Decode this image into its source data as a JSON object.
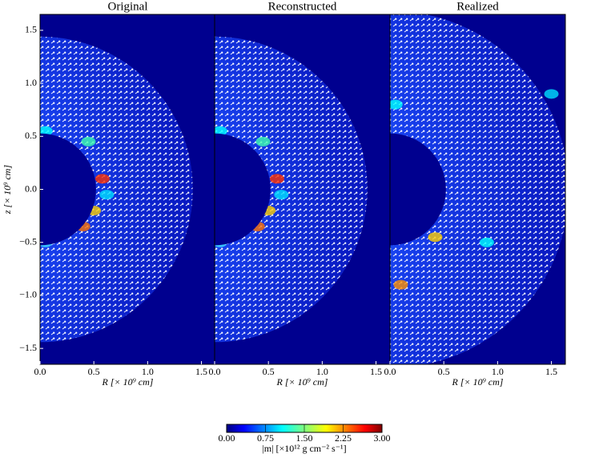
{
  "chart_data": {
    "type": "heatmap",
    "panels": [
      {
        "title": "Original"
      },
      {
        "title": "Reconstructed"
      },
      {
        "title": "Realized"
      }
    ],
    "xlabel": "R [× 10⁹ cm]",
    "ylabel": "z [× 10⁹ cm]",
    "xlim": [
      0,
      1.63
    ],
    "ylim": [
      -1.65,
      1.65
    ],
    "xticks": [
      {
        "value": 0,
        "label": "0.0"
      },
      0.5,
      {
        "value": 1,
        "label": "1.0"
      },
      1.5
    ],
    "yticks": [
      {
        "value": -1.5,
        "label": "−1.5"
      },
      {
        "value": -1,
        "label": "−1.0"
      },
      {
        "value": -0.5,
        "label": "−0.5"
      },
      {
        "value": 0,
        "label": "0.0"
      },
      0.5,
      {
        "value": 1,
        "label": "1.0"
      },
      1.5
    ],
    "colormap": "jet",
    "colorbar": {
      "label": "|m| [×10¹² g cm⁻² s⁻¹]",
      "lim": [
        0,
        3
      ],
      "ticks": [
        {
          "value": 0,
          "label": "0.00"
        },
        {
          "value": 0.75,
          "label": "0.75"
        },
        {
          "value": 1.5,
          "label": "1.50"
        },
        {
          "value": 2.25,
          "label": "2.25"
        },
        {
          "value": 3,
          "label": "3.00"
        }
      ]
    }
  }
}
